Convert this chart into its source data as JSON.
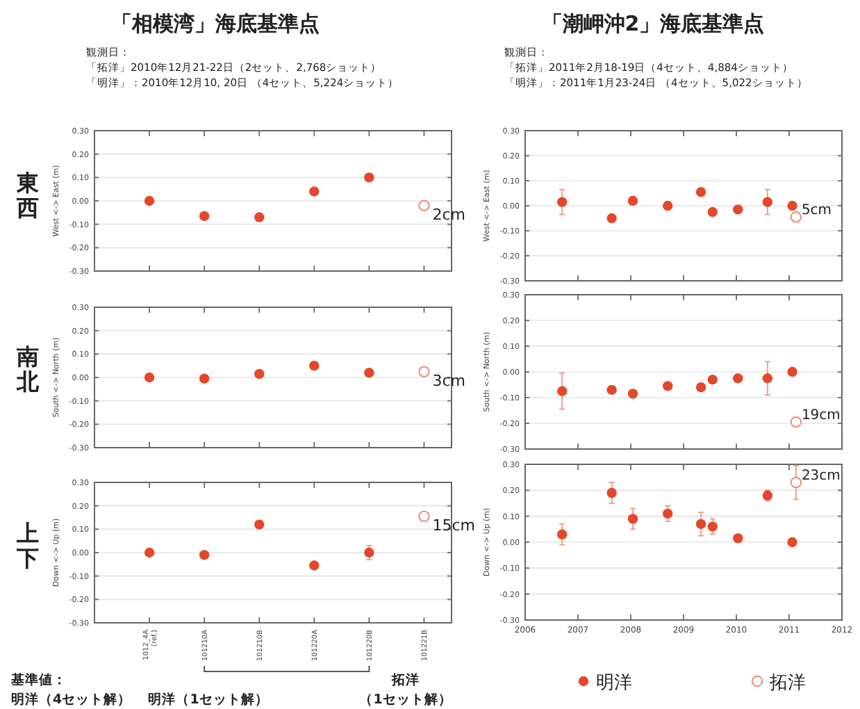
{
  "chart_data": [
    {
      "type": "scatter",
      "title": "「相模湾」海底基準点",
      "subtitle": "観測日：",
      "ylabel": "West <-> East (m)",
      "categories": [
        "1012_4A\n(ref.)",
        "101210A",
        "101210B",
        "101220A",
        "101220B",
        "101221B"
      ],
      "ylim": [
        -0.3,
        0.3
      ],
      "yticks": [
        {
          "value": -0.3,
          "label": "-0.30"
        },
        {
          "value": -0.2,
          "label": "-0.20"
        },
        {
          "value": -0.1,
          "label": "-0.10"
        },
        {
          "value": 0,
          "label": "0.00"
        },
        {
          "value": 0.1,
          "label": "0.10"
        },
        {
          "value": 0.2,
          "label": "0.20"
        },
        {
          "value": 0.3,
          "label": "0.30"
        }
      ],
      "tick_labels": "y",
      "grid": "y",
      "marker": "circle",
      "series": [
        {
          "color": "#e5472a",
          "values": [
            0,
            -0.065,
            -0.07,
            0.04,
            0.1,
            null
          ]
        },
        {
          "color": "#f08a78",
          "values": [
            null,
            null,
            null,
            null,
            null,
            -0.02
          ]
        }
      ],
      "annotations": [
        "「拓洋」2010年12月21-22日（2セット、2,768ショット）",
        "「明洋」：2010年12月10, 20日 （4セット、5,224ショット）",
        "東西",
        {
          "text": "2cm",
          "x": "101221B",
          "y": -0.02
        }
      ]
    },
    {
      "type": "scatter",
      "title": "「潮岬沖2」海底基準点",
      "subtitle": "観測日：",
      "ylabel": "West <-> East (m)",
      "xlim": [
        2006,
        2012
      ],
      "xticks": [
        2006,
        2007,
        2008,
        2009,
        2010,
        2011,
        2012
      ],
      "ylim": [
        -0.3,
        0.3
      ],
      "yticks": [
        {
          "value": -0.3,
          "label": "-0.30"
        },
        {
          "value": -0.2,
          "label": "-0.20"
        },
        {
          "value": -0.1,
          "label": "-0.10"
        },
        {
          "value": 0,
          "label": "0.00"
        },
        {
          "value": 0.1,
          "label": "0.10"
        },
        {
          "value": 0.2,
          "label": "0.20"
        },
        {
          "value": 0.3,
          "label": "0.30"
        }
      ],
      "tick_labels": "y",
      "grid": "y",
      "marker": "circle",
      "series": [
        {
          "color": "#e5472a",
          "x": [
            2006.7,
            2007.64,
            2008.04,
            2008.7,
            2009.33,
            2009.55,
            2010.03,
            2010.59,
            2011.06
          ],
          "values": [
            0.015,
            -0.05,
            0.02,
            0,
            0.055,
            -0.025,
            -0.015,
            0.015,
            0
          ],
          "errors": [
            0.05,
            null,
            null,
            null,
            null,
            null,
            null,
            0.05,
            null
          ]
        },
        {
          "color": "#f08a78",
          "x": [
            2011.13
          ],
          "values": [
            -0.045
          ]
        }
      ],
      "annotations": [
        "「拓洋」2011年2月18-19日（4セット、4,884ショット）",
        "「明洋」：2011年1月23-24日 （4セット、5,022ショット）",
        {
          "text": "5cm",
          "x": 2011.13,
          "y": -0.045
        }
      ]
    },
    {
      "type": "scatter",
      "ylabel": "South <-> North (m)",
      "categories": [
        "1012_4A\n(ref.)",
        "101210A",
        "101210B",
        "101220A",
        "101220B",
        "101221B"
      ],
      "ylim": [
        -0.3,
        0.3
      ],
      "yticks": [
        {
          "value": -0.3,
          "label": "-0.30"
        },
        {
          "value": -0.2,
          "label": "-0.20"
        },
        {
          "value": -0.1,
          "label": "-0.10"
        },
        {
          "value": 0,
          "label": "0.00"
        },
        {
          "value": 0.1,
          "label": "0.10"
        },
        {
          "value": 0.2,
          "label": "0.20"
        },
        {
          "value": 0.3,
          "label": "0.30"
        }
      ],
      "tick_labels": "y",
      "grid": "y",
      "marker": "circle",
      "series": [
        {
          "color": "#e5472a",
          "values": [
            0,
            -0.005,
            0.015,
            0.05,
            0.02,
            null
          ]
        },
        {
          "color": "#f08a78",
          "values": [
            null,
            null,
            null,
            null,
            null,
            0.025
          ]
        }
      ],
      "annotations": [
        "南北",
        {
          "text": "3cm",
          "x": "101221B",
          "y": 0.025
        }
      ]
    },
    {
      "type": "scatter",
      "ylabel": "South <-> North (m)",
      "xlim": [
        2006,
        2012
      ],
      "xticks": [
        2006,
        2007,
        2008,
        2009,
        2010,
        2011,
        2012
      ],
      "ylim": [
        -0.3,
        0.3
      ],
      "yticks": [
        {
          "value": -0.3,
          "label": "-0.30"
        },
        {
          "value": -0.2,
          "label": "-0.20"
        },
        {
          "value": -0.1,
          "label": "-0.10"
        },
        {
          "value": 0,
          "label": "0.00"
        },
        {
          "value": 0.1,
          "label": "0.10"
        },
        {
          "value": 0.2,
          "label": "0.20"
        },
        {
          "value": 0.3,
          "label": "0.30"
        }
      ],
      "tick_labels": "y",
      "grid": "y",
      "marker": "circle",
      "series": [
        {
          "color": "#e5472a",
          "x": [
            2006.7,
            2007.64,
            2008.04,
            2008.7,
            2009.33,
            2009.55,
            2010.03,
            2010.59,
            2011.06
          ],
          "values": [
            -0.075,
            -0.07,
            -0.085,
            -0.055,
            -0.06,
            -0.03,
            -0.025,
            -0.025,
            0
          ],
          "errors": [
            0.07,
            null,
            null,
            null,
            null,
            null,
            null,
            0.065,
            null
          ]
        },
        {
          "color": "#f08a78",
          "x": [
            2011.13
          ],
          "values": [
            -0.195
          ]
        }
      ],
      "annotations": [
        {
          "text": "19cm",
          "x": 2011.13,
          "y": -0.195
        }
      ]
    },
    {
      "type": "scatter",
      "ylabel": "Down <-> Up (m)",
      "categories": [
        "1012_4A\n(ref.)",
        "101210A",
        "101210B",
        "101220A",
        "101220B",
        "101221B"
      ],
      "ylim": [
        -0.3,
        0.3
      ],
      "yticks": [
        {
          "value": -0.3,
          "label": "-0.30"
        },
        {
          "value": -0.2,
          "label": "-0.20"
        },
        {
          "value": -0.1,
          "label": "-0.10"
        },
        {
          "value": 0,
          "label": "0.00"
        },
        {
          "value": 0.1,
          "label": "0.10"
        },
        {
          "value": 0.2,
          "label": "0.20"
        },
        {
          "value": 0.3,
          "label": "0.30"
        }
      ],
      "grid": "y",
      "marker": "circle",
      "series": [
        {
          "color": "#e5472a",
          "values": [
            0,
            -0.01,
            0.12,
            -0.055,
            0,
            null
          ],
          "errors": [
            null,
            null,
            null,
            null,
            0.03,
            null
          ]
        },
        {
          "color": "#f08a78",
          "values": [
            null,
            null,
            null,
            null,
            null,
            0.155
          ]
        }
      ],
      "annotations": [
        "上下",
        {
          "text": "15cm",
          "x": "101221B",
          "y": 0.155
        },
        "基準値：",
        "明洋（4セット解）",
        "明洋（1セット解）",
        "拓洋",
        "（1セット解）"
      ]
    },
    {
      "type": "scatter",
      "ylabel": "Down <-> Up (m)",
      "xlim": [
        2006,
        2012
      ],
      "xticks": [
        2006,
        2007,
        2008,
        2009,
        2010,
        2011,
        2012
      ],
      "ylim": [
        -0.3,
        0.3
      ],
      "yticks": [
        {
          "value": -0.3,
          "label": "-0.30"
        },
        {
          "value": -0.2,
          "label": "-0.20"
        },
        {
          "value": -0.1,
          "label": "-0.10"
        },
        {
          "value": 0,
          "label": "0.00"
        },
        {
          "value": 0.1,
          "label": "0.10"
        },
        {
          "value": 0.2,
          "label": "0.20"
        },
        {
          "value": 0.3,
          "label": "0.30"
        }
      ],
      "grid": "y",
      "marker": "circle",
      "legend": "bottom",
      "series": [
        {
          "name": "明洋",
          "color": "#e5472a",
          "x": [
            2006.7,
            2007.64,
            2008.04,
            2008.7,
            2009.33,
            2009.55,
            2010.03,
            2010.59,
            2011.06
          ],
          "values": [
            0.03,
            0.19,
            0.09,
            0.11,
            0.07,
            0.06,
            0.015,
            0.18,
            0
          ],
          "errors": [
            0.04,
            0.04,
            0.04,
            0.03,
            0.045,
            0.03,
            0.015,
            0.02,
            null
          ]
        },
        {
          "name": "拓洋",
          "color": "#f08a78",
          "x": [
            2011.13
          ],
          "values": [
            0.23
          ],
          "errors": [
            0.065
          ]
        }
      ],
      "annotations": [
        {
          "text": "23cm",
          "x": 2011.13,
          "y": 0.23
        }
      ]
    }
  ]
}
